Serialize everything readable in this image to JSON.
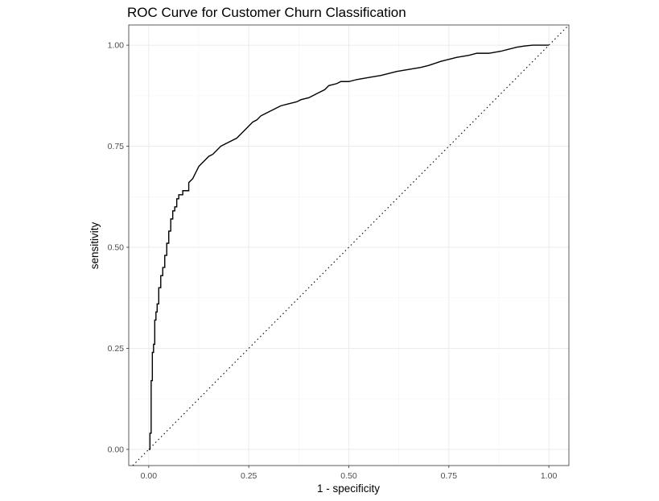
{
  "chart_data": {
    "type": "line",
    "title": "ROC Curve for Customer Churn Classification",
    "xlabel": "1 - specificity",
    "ylabel": "sensitivity",
    "xlim": [
      -0.05,
      1.05
    ],
    "ylim": [
      -0.04,
      1.05
    ],
    "x_ticks": [
      "0.00",
      "0.25",
      "0.50",
      "0.75",
      "1.00"
    ],
    "y_ticks": [
      "0.00",
      "0.25",
      "0.50",
      "0.75",
      "1.00"
    ],
    "grid": true,
    "reference_line": {
      "style": "dotted",
      "from": [
        0,
        0
      ],
      "to": [
        1,
        1
      ]
    },
    "series": [
      {
        "x": [
          0.0,
          0.003,
          0.003,
          0.006,
          0.006,
          0.009,
          0.009,
          0.012,
          0.012,
          0.015,
          0.015,
          0.018,
          0.018,
          0.021,
          0.021,
          0.025,
          0.025,
          0.03,
          0.03,
          0.035,
          0.035,
          0.04,
          0.04,
          0.045,
          0.045,
          0.05,
          0.05,
          0.055,
          0.055,
          0.06,
          0.06,
          0.065,
          0.065,
          0.07,
          0.07,
          0.075,
          0.075,
          0.085,
          0.085,
          0.1,
          0.1,
          0.11,
          0.115,
          0.12,
          0.125,
          0.13,
          0.14,
          0.15,
          0.16,
          0.17,
          0.18,
          0.19,
          0.2,
          0.21,
          0.22,
          0.23,
          0.24,
          0.25,
          0.26,
          0.27,
          0.28,
          0.29,
          0.3,
          0.31,
          0.32,
          0.33,
          0.35,
          0.37,
          0.38,
          0.4,
          0.42,
          0.44,
          0.45,
          0.47,
          0.48,
          0.5,
          0.52,
          0.55,
          0.58,
          0.6,
          0.62,
          0.65,
          0.68,
          0.7,
          0.73,
          0.75,
          0.77,
          0.8,
          0.82,
          0.85,
          0.88,
          0.9,
          0.92,
          0.94,
          0.96,
          0.98,
          1.0
        ],
        "y": [
          0.0,
          0.0,
          0.04,
          0.04,
          0.17,
          0.17,
          0.24,
          0.24,
          0.26,
          0.26,
          0.32,
          0.32,
          0.34,
          0.34,
          0.36,
          0.36,
          0.4,
          0.4,
          0.43,
          0.43,
          0.45,
          0.45,
          0.48,
          0.48,
          0.51,
          0.51,
          0.54,
          0.54,
          0.57,
          0.57,
          0.59,
          0.59,
          0.6,
          0.6,
          0.62,
          0.62,
          0.63,
          0.63,
          0.64,
          0.64,
          0.66,
          0.67,
          0.68,
          0.69,
          0.7,
          0.705,
          0.715,
          0.725,
          0.73,
          0.74,
          0.75,
          0.755,
          0.76,
          0.765,
          0.77,
          0.78,
          0.79,
          0.8,
          0.81,
          0.815,
          0.825,
          0.83,
          0.835,
          0.84,
          0.845,
          0.85,
          0.855,
          0.86,
          0.865,
          0.87,
          0.88,
          0.89,
          0.9,
          0.905,
          0.91,
          0.91,
          0.915,
          0.92,
          0.925,
          0.93,
          0.935,
          0.94,
          0.945,
          0.95,
          0.96,
          0.965,
          0.97,
          0.975,
          0.98,
          0.98,
          0.985,
          0.99,
          0.995,
          0.998,
          1.0,
          1.0,
          1.0
        ]
      }
    ]
  }
}
